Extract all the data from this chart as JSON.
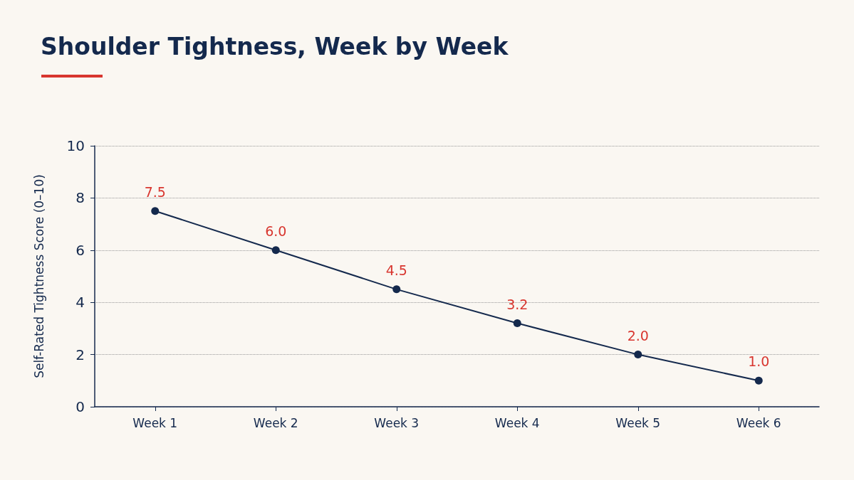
{
  "chart_data": {
    "type": "line",
    "title": "Shoulder Tightness, Week by Week",
    "ylabel": "Self-Rated Tightness Score (0–10)",
    "categories": [
      "Week 1",
      "Week 2",
      "Week 3",
      "Week 4",
      "Week 5",
      "Week 6"
    ],
    "series": [
      {
        "color": "#14294d",
        "values": [
          7.5,
          6,
          4.5,
          3.2,
          2,
          1
        ],
        "value_labels": [
          "7.5",
          "6.0",
          "4.5",
          "3.2",
          "2.0",
          "1.0"
        ]
      }
    ],
    "ylim": [
      0,
      10
    ],
    "yticks": [
      0,
      2,
      4,
      6,
      8,
      10
    ],
    "grid": "y",
    "marker": "circle",
    "line_style": "solid"
  }
}
